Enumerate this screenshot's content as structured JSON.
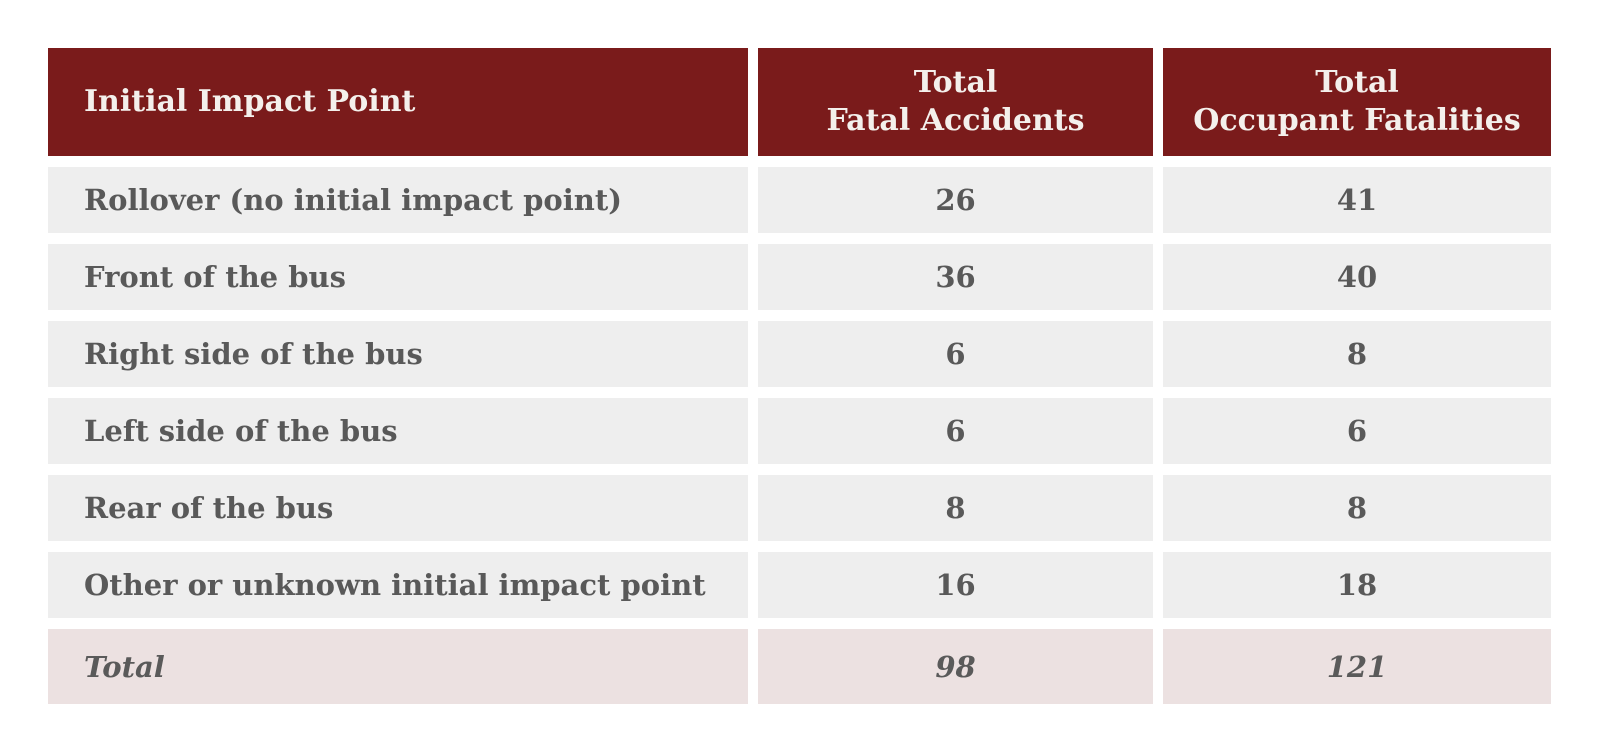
{
  "chart_data": {
    "type": "table",
    "columns": [
      {
        "label": "Initial Impact Point"
      },
      {
        "line1": "Total",
        "line2": "Fatal Accidents"
      },
      {
        "line1": "Total",
        "line2": "Occupant Fatalities"
      }
    ],
    "rows": [
      {
        "impact_point": "Rollover (no initial impact point)",
        "fatal_accidents": "26",
        "occupant_fatalities": "41"
      },
      {
        "impact_point": "Front of the bus",
        "fatal_accidents": "36",
        "occupant_fatalities": "40"
      },
      {
        "impact_point": "Right side of the bus",
        "fatal_accidents": "6",
        "occupant_fatalities": "8"
      },
      {
        "impact_point": "Left side of the bus",
        "fatal_accidents": "6",
        "occupant_fatalities": "6"
      },
      {
        "impact_point": "Rear of the bus",
        "fatal_accidents": "8",
        "occupant_fatalities": "8"
      },
      {
        "impact_point": "Other or unknown initial impact point",
        "fatal_accidents": "16",
        "occupant_fatalities": "18"
      }
    ],
    "total_row": {
      "impact_point": "Total",
      "fatal_accidents": "98",
      "occupant_fatalities": "121"
    }
  },
  "colors": {
    "header_bg": "#7a1b1b",
    "header_text": "#f4f0ec",
    "row_bg": "#eeeeee",
    "total_row_bg": "#ece1e1",
    "body_text": "#595959",
    "page_bg": "#ffffff"
  }
}
